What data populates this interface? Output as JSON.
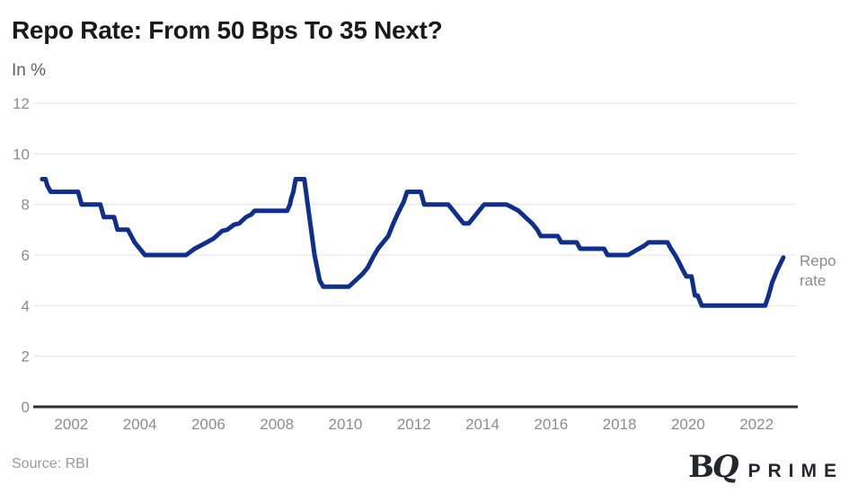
{
  "title": "Repo Rate: From 50 Bps To 35 Next?",
  "subtitle": "In %",
  "source": "Source: RBI",
  "series_label": "Repo rate",
  "logo": {
    "b": "B",
    "q": "Q",
    "prime": "PRIME"
  },
  "colors": {
    "line": "#0e2f8d",
    "grid": "#e3e3e3",
    "axis": "#2e2e2e",
    "tick_label": "#8c8c8c",
    "title": "#1a1a1a",
    "subtitle": "#5f5f5f",
    "source": "#9a9a9a",
    "logo": "#26262e"
  },
  "chart_data": {
    "type": "line",
    "title": "Repo Rate: From 50 Bps To 35 Next?",
    "ylabel": "In %",
    "xlabel": "",
    "x_ticks": [
      2002,
      2004,
      2006,
      2008,
      2010,
      2012,
      2014,
      2016,
      2018,
      2020,
      2022
    ],
    "y_ticks": [
      0,
      2,
      4,
      6,
      8,
      10,
      12
    ],
    "xlim": [
      2001.1,
      2023.15
    ],
    "ylim": [
      0,
      12
    ],
    "grid": "horizontal",
    "legend_position": "right of line end",
    "series": [
      {
        "name": "Repo rate",
        "color": "#0e2f8d",
        "points": [
          [
            2001.15,
            9
          ],
          [
            2001.25,
            9
          ],
          [
            2001.3,
            8.75
          ],
          [
            2001.4,
            8.5
          ],
          [
            2002.2,
            8.5
          ],
          [
            2002.3,
            8
          ],
          [
            2002.85,
            8
          ],
          [
            2002.95,
            7.5
          ],
          [
            2003.25,
            7.5
          ],
          [
            2003.35,
            7
          ],
          [
            2003.65,
            7
          ],
          [
            2003.85,
            6.5
          ],
          [
            2004.15,
            6
          ],
          [
            2005.35,
            6
          ],
          [
            2005.6,
            6.25
          ],
          [
            2005.95,
            6.5
          ],
          [
            2006.15,
            6.65
          ],
          [
            2006.4,
            6.95
          ],
          [
            2006.55,
            7
          ],
          [
            2006.75,
            7.2
          ],
          [
            2006.9,
            7.25
          ],
          [
            2007.1,
            7.5
          ],
          [
            2007.25,
            7.6
          ],
          [
            2007.35,
            7.75
          ],
          [
            2008.3,
            7.75
          ],
          [
            2008.38,
            8
          ],
          [
            2008.42,
            8.25
          ],
          [
            2008.48,
            8.5
          ],
          [
            2008.55,
            9
          ],
          [
            2008.8,
            9
          ],
          [
            2008.95,
            7.5
          ],
          [
            2009.1,
            6
          ],
          [
            2009.25,
            5
          ],
          [
            2009.35,
            4.75
          ],
          [
            2010.1,
            4.75
          ],
          [
            2010.3,
            5
          ],
          [
            2010.5,
            5.25
          ],
          [
            2010.65,
            5.5
          ],
          [
            2010.8,
            5.9
          ],
          [
            2010.95,
            6.25
          ],
          [
            2011.1,
            6.5
          ],
          [
            2011.25,
            6.75
          ],
          [
            2011.4,
            7.25
          ],
          [
            2011.55,
            7.7
          ],
          [
            2011.7,
            8.1
          ],
          [
            2011.8,
            8.5
          ],
          [
            2012.2,
            8.5
          ],
          [
            2012.3,
            8
          ],
          [
            2013,
            8
          ],
          [
            2013.15,
            7.75
          ],
          [
            2013.3,
            7.5
          ],
          [
            2013.45,
            7.25
          ],
          [
            2013.6,
            7.25
          ],
          [
            2013.75,
            7.5
          ],
          [
            2013.9,
            7.75
          ],
          [
            2014.05,
            8
          ],
          [
            2014.7,
            8
          ],
          [
            2014.85,
            7.9
          ],
          [
            2015.05,
            7.75
          ],
          [
            2015.25,
            7.5
          ],
          [
            2015.45,
            7.25
          ],
          [
            2015.6,
            7
          ],
          [
            2015.7,
            6.75
          ],
          [
            2016.2,
            6.75
          ],
          [
            2016.3,
            6.5
          ],
          [
            2016.75,
            6.5
          ],
          [
            2016.85,
            6.25
          ],
          [
            2017.55,
            6.25
          ],
          [
            2017.65,
            6
          ],
          [
            2018.25,
            6
          ],
          [
            2018.5,
            6.2
          ],
          [
            2018.7,
            6.35
          ],
          [
            2018.85,
            6.5
          ],
          [
            2019.4,
            6.5
          ],
          [
            2019.5,
            6.25
          ],
          [
            2019.62,
            6
          ],
          [
            2019.72,
            5.75
          ],
          [
            2019.85,
            5.4
          ],
          [
            2019.95,
            5.15
          ],
          [
            2020.1,
            5.15
          ],
          [
            2020.2,
            4.4
          ],
          [
            2020.28,
            4.4
          ],
          [
            2020.4,
            4
          ],
          [
            2022.25,
            4
          ],
          [
            2022.35,
            4.4
          ],
          [
            2022.45,
            4.9
          ],
          [
            2022.6,
            5.4
          ],
          [
            2022.78,
            5.9
          ]
        ]
      }
    ]
  }
}
